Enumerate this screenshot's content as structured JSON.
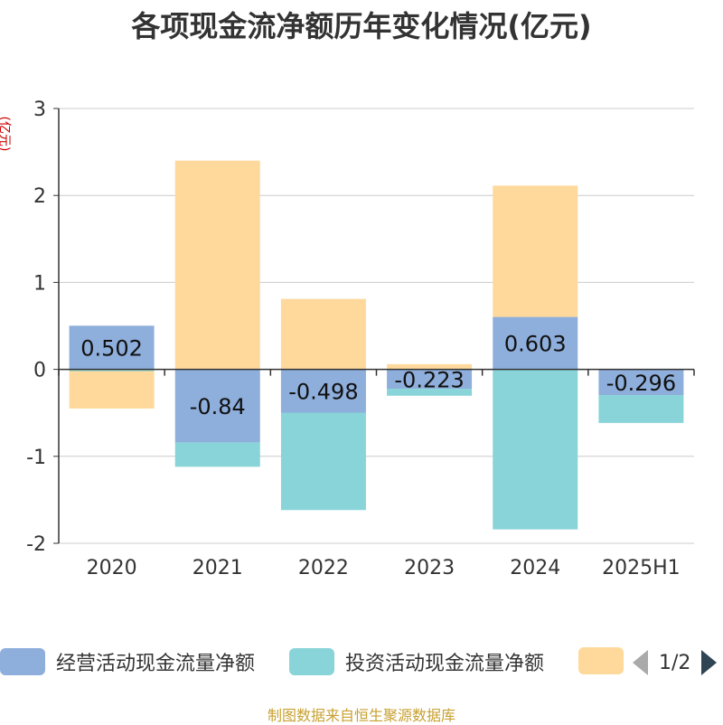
{
  "title": "各项现金流净额历年变化情况(亿元)",
  "unit_label": "(亿元)",
  "source": "制图数据来自恒生聚源数据库",
  "pager": {
    "text": "1/2"
  },
  "colors": {
    "operating": "#8eaedb",
    "investing": "#88d4d8",
    "third": "#fed99b",
    "axis": "#333333",
    "grid": "#cccccc"
  },
  "legend": [
    {
      "label": "经营活动现金流量净额",
      "color": "#8eaedb"
    },
    {
      "label": "投资活动现金流量净额",
      "color": "#88d4d8"
    },
    {
      "label": "",
      "color": "#fed99b"
    }
  ],
  "chart_data": {
    "type": "bar",
    "stacked": true,
    "categories": [
      "2020",
      "2021",
      "2022",
      "2023",
      "2024",
      "2025H1"
    ],
    "ylim": [
      -2,
      3
    ],
    "yticks": [
      -2,
      -1,
      0,
      1,
      2,
      3
    ],
    "series": [
      {
        "name": "经营活动现金流量净额",
        "values": [
          0.502,
          -0.84,
          -0.498,
          -0.223,
          0.603,
          -0.296
        ],
        "labels": [
          "0.502",
          "-0.84",
          "-0.498",
          "-0.223",
          "0.603",
          "-0.296"
        ]
      },
      {
        "name": "投资活动现金流量净额",
        "values": [
          -0.02,
          -0.28,
          -1.12,
          -0.08,
          -1.84,
          -0.32
        ]
      },
      {
        "values": [
          -0.43,
          2.4,
          0.81,
          0.06,
          1.51,
          0
        ]
      }
    ],
    "grid": true
  }
}
